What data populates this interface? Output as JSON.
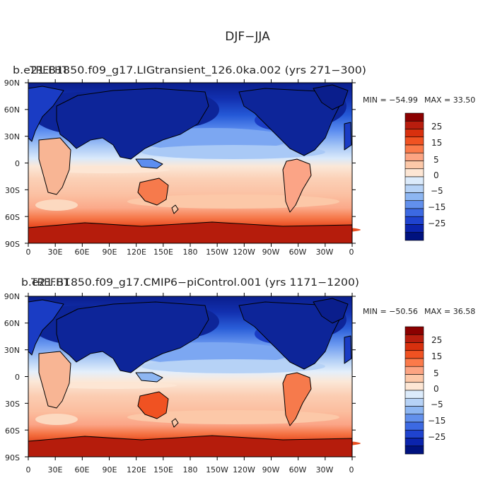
{
  "figure": {
    "title": "DJF−JJA"
  },
  "panels": [
    {
      "overlap_label": "TREFHT",
      "case_label": "b.e21.B1850.f09_g17.LIGtransient_126.0ka.002 (yrs 271−300)",
      "min_label": "MIN = −54.99",
      "max_label": "MAX =  33.50",
      "lat_ticks": [
        "90N",
        "60N",
        "30N",
        "0",
        "30S",
        "60S",
        "90S"
      ],
      "lon_ticks": [
        "0",
        "30E",
        "60E",
        "90E",
        "120E",
        "150E",
        "180",
        "150W",
        "120W",
        "90W",
        "60W",
        "30W",
        "0"
      ],
      "colorbar_labels": [
        "25",
        "15",
        "5",
        "0",
        "−5",
        "−15",
        "−25"
      ]
    },
    {
      "overlap_label": "TREFHT",
      "case_label": "b.e21.B1850.f09_g17.CMIP6−piControl.001 (yrs 1171−1200)",
      "min_label": "MIN = −50.56",
      "max_label": "MAX =  36.58",
      "lat_ticks": [
        "90N",
        "60N",
        "30N",
        "0",
        "30S",
        "60S",
        "90S"
      ],
      "lon_ticks": [
        "0",
        "30E",
        "60E",
        "90E",
        "120E",
        "150E",
        "180",
        "150W",
        "120W",
        "90W",
        "60W",
        "30W",
        "0"
      ],
      "colorbar_labels": [
        "25",
        "15",
        "5",
        "0",
        "−5",
        "−15",
        "−25"
      ]
    }
  ],
  "colorbar_colors": [
    "#8b0000",
    "#b81d0e",
    "#d8300e",
    "#f05222",
    "#fb7a4a",
    "#fca482",
    "#fcc8a8",
    "#fde6d4",
    "#dcebfb",
    "#b6d2f6",
    "#8db6f2",
    "#6290ec",
    "#3c69e2",
    "#1f43cf",
    "#0b24ad",
    "#00127f"
  ],
  "colors": {
    "land": "#2233aa",
    "coast": "#000000"
  }
}
